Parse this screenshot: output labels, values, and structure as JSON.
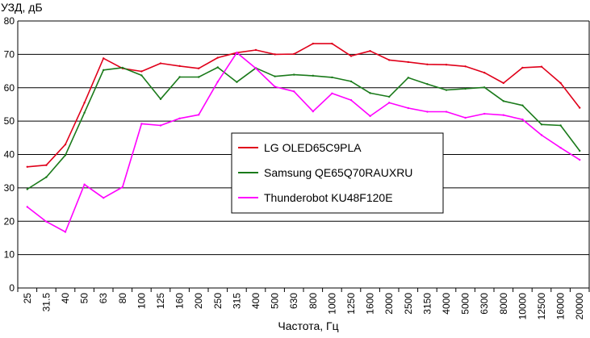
{
  "chart_data": {
    "type": "line",
    "ylabel": "УЗД, дБ",
    "xlabel": "Частота, Гц",
    "ylim": [
      0,
      80
    ],
    "yticks": [
      0,
      10,
      20,
      30,
      40,
      50,
      60,
      70,
      80
    ],
    "grid": "horizontal",
    "legend_position": "center-right",
    "categories": [
      "25",
      "31.5",
      "40",
      "50",
      "63",
      "80",
      "100",
      "125",
      "160",
      "200",
      "250",
      "315",
      "400",
      "500",
      "630",
      "800",
      "1000",
      "1250",
      "1600",
      "2000",
      "2500",
      "3150",
      "4000",
      "5000",
      "6300",
      "8000",
      "10000",
      "12500",
      "16000",
      "20000"
    ],
    "series": [
      {
        "name": "LG OLED65C9PLA",
        "color": "#e0001a",
        "values": [
          36.3,
          36.8,
          43.0,
          55.5,
          68.8,
          65.8,
          64.9,
          67.3,
          66.5,
          65.8,
          69.0,
          70.5,
          71.3,
          70.0,
          70.1,
          73.2,
          73.2,
          69.5,
          71.0,
          68.3,
          67.7,
          67.0,
          66.9,
          66.4,
          64.5,
          61.4,
          66.0,
          66.3,
          61.4,
          54.0
        ]
      },
      {
        "name": "Samsung QE65Q70RAUXRU",
        "color": "#1a7a1a",
        "values": [
          29.6,
          33.2,
          39.8,
          52.5,
          65.3,
          66.0,
          63.7,
          56.6,
          63.2,
          63.2,
          66.1,
          61.7,
          65.9,
          63.4,
          63.9,
          63.6,
          63.1,
          61.9,
          58.4,
          57.3,
          63.0,
          61.1,
          59.3,
          59.7,
          60.1,
          56.0,
          54.7,
          49.0,
          48.7,
          41.1
        ]
      },
      {
        "name": "Thunderobot KU48F120E",
        "color": "#ff00ff",
        "values": [
          24.3,
          19.9,
          16.8,
          31.0,
          27.0,
          30.2,
          49.2,
          48.7,
          50.8,
          51.9,
          61.8,
          70.5,
          65.8,
          60.3,
          58.9,
          52.9,
          58.3,
          56.3,
          51.5,
          55.5,
          53.9,
          52.8,
          52.8,
          51.0,
          52.2,
          51.8,
          50.5,
          45.8,
          42.0,
          38.4
        ]
      }
    ]
  }
}
